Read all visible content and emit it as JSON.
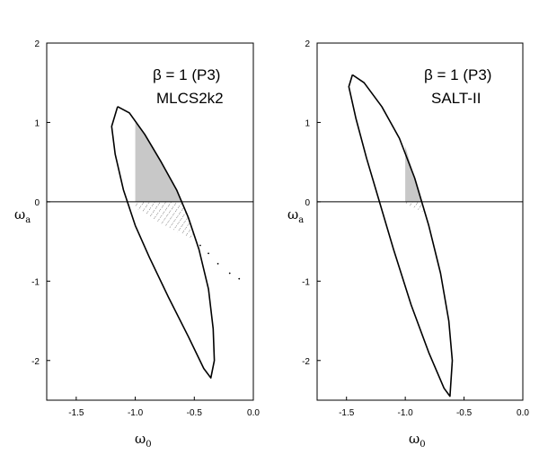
{
  "chart_data": [
    {
      "type": "line",
      "panel": "left",
      "annotation_lines": [
        "β = 1 (P3)",
        "MLCS2k2"
      ],
      "xlabel_main": "ω",
      "xlabel_sub": "0",
      "ylabel_main": "ω",
      "ylabel_sub": "a",
      "xlim": [
        -1.75,
        0.0
      ],
      "ylim": [
        -2.5,
        2.0
      ],
      "xticks": [
        -1.5,
        -1.0,
        -0.5,
        0.0
      ],
      "xtick_labels": [
        "-1.5",
        "-1.0",
        "-0.5",
        "0.0"
      ],
      "yticks": [
        -2,
        -1,
        0,
        1,
        2
      ],
      "ytick_labels": [
        "-2",
        "-1",
        "0",
        "1",
        "2"
      ],
      "hline": 0,
      "contour": [
        [
          -1.15,
          1.2
        ],
        [
          -1.05,
          1.12
        ],
        [
          -0.92,
          0.85
        ],
        [
          -0.78,
          0.5
        ],
        [
          -0.65,
          0.15
        ],
        [
          -0.55,
          -0.2
        ],
        [
          -0.46,
          -0.6
        ],
        [
          -0.38,
          -1.1
        ],
        [
          -0.34,
          -1.6
        ],
        [
          -0.33,
          -2.0
        ],
        [
          -0.36,
          -2.22
        ],
        [
          -0.42,
          -2.1
        ],
        [
          -0.55,
          -1.7
        ],
        [
          -0.72,
          -1.2
        ],
        [
          -0.88,
          -0.7
        ],
        [
          -1.0,
          -0.3
        ],
        [
          -1.1,
          0.15
        ],
        [
          -1.17,
          0.6
        ],
        [
          -1.2,
          0.95
        ],
        [
          -1.15,
          1.2
        ]
      ],
      "shaded_region": [
        [
          -1.0,
          1.0
        ],
        [
          -0.92,
          0.85
        ],
        [
          -0.78,
          0.5
        ],
        [
          -0.65,
          0.15
        ],
        [
          -0.6,
          0.0
        ],
        [
          -1.0,
          0.0
        ]
      ],
      "hatched_region": [
        [
          -1.0,
          0.0
        ],
        [
          -0.6,
          0.0
        ],
        [
          -0.55,
          -0.2
        ],
        [
          -0.5,
          -0.48
        ],
        [
          -0.75,
          -0.3
        ],
        [
          -1.0,
          -0.08
        ]
      ],
      "dotted_points": [
        [
          -0.45,
          -0.55
        ],
        [
          -0.38,
          -0.65
        ],
        [
          -0.3,
          -0.78
        ],
        [
          -0.2,
          -0.9
        ],
        [
          -0.12,
          -0.97
        ]
      ]
    },
    {
      "type": "line",
      "panel": "right",
      "annotation_lines": [
        "β = 1 (P3)",
        "SALT-II"
      ],
      "xlabel_main": "ω",
      "xlabel_sub": "0",
      "ylabel_main": "ω",
      "ylabel_sub": "a",
      "xlim": [
        -1.75,
        0.0
      ],
      "ylim": [
        -2.5,
        2.0
      ],
      "xticks": [
        -1.5,
        -1.0,
        -0.5,
        0.0
      ],
      "xtick_labels": [
        "-1.5",
        "-1.0",
        "-0.5",
        "0.0"
      ],
      "yticks": [
        -2,
        -1,
        0,
        1,
        2
      ],
      "ytick_labels": [
        "-2",
        "-1",
        "0",
        "1",
        "2"
      ],
      "hline": 0,
      "contour": [
        [
          -1.45,
          1.6
        ],
        [
          -1.35,
          1.5
        ],
        [
          -1.2,
          1.2
        ],
        [
          -1.05,
          0.8
        ],
        [
          -0.92,
          0.3
        ],
        [
          -0.8,
          -0.3
        ],
        [
          -0.7,
          -0.9
        ],
        [
          -0.63,
          -1.5
        ],
        [
          -0.6,
          -2.0
        ],
        [
          -0.62,
          -2.45
        ],
        [
          -0.67,
          -2.35
        ],
        [
          -0.8,
          -1.9
        ],
        [
          -0.95,
          -1.3
        ],
        [
          -1.1,
          -0.6
        ],
        [
          -1.22,
          0.0
        ],
        [
          -1.33,
          0.55
        ],
        [
          -1.42,
          1.05
        ],
        [
          -1.48,
          1.45
        ],
        [
          -1.45,
          1.6
        ]
      ],
      "shaded_region": [
        [
          -1.0,
          0.7
        ],
        [
          -0.92,
          0.3
        ],
        [
          -0.86,
          0.0
        ],
        [
          -1.0,
          0.0
        ]
      ],
      "hatched_region": [
        [
          -1.0,
          0.0
        ],
        [
          -0.86,
          0.0
        ],
        [
          -0.82,
          -0.15
        ],
        [
          -1.0,
          -0.02
        ]
      ],
      "dotted_points": []
    }
  ]
}
